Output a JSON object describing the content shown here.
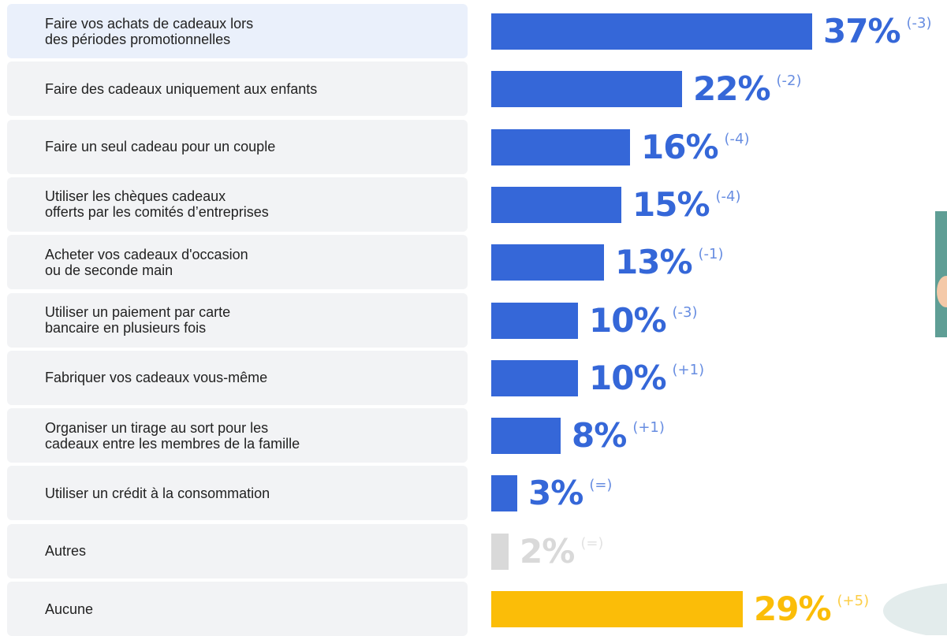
{
  "chart_data": {
    "type": "bar",
    "orientation": "horizontal",
    "categories": [
      "Faire vos achats de cadeaux lors\ndes périodes promotionnelles",
      "Faire des cadeaux uniquement aux enfants",
      "Faire un seul cadeau pour un couple",
      "Utiliser les chèques cadeaux\nofferts par les comités d’entreprises",
      "Acheter vos cadeaux d'occasion\nou de seconde main",
      "Utiliser un paiement par carte\nbancaire en plusieurs fois",
      "Fabriquer vos cadeaux vous-même",
      "Organiser un tirage au sort pour les\ncadeaux entre les membres de la famille",
      "Utiliser un crédit à la consommation",
      "Autres",
      "Aucune"
    ],
    "values": [
      37,
      22,
      16,
      15,
      13,
      10,
      10,
      8,
      3,
      2,
      29
    ],
    "value_labels": [
      "37%",
      "22%",
      "16%",
      "15%",
      "13%",
      "10%",
      "10%",
      "8%",
      "3%",
      "2%",
      "29%"
    ],
    "changes": [
      "(-3)",
      "(-2)",
      "(-4)",
      "(-4)",
      "(-1)",
      "(-3)",
      "(+1)",
      "(+1)",
      "(=)",
      "(=)",
      "(+5)"
    ],
    "colors": [
      "#3567d8",
      "#3567d8",
      "#3567d8",
      "#3567d8",
      "#3567d8",
      "#3567d8",
      "#3567d8",
      "#3567d8",
      "#3567d8",
      "#d9d9d9",
      "#fbbd08"
    ]
  }
}
